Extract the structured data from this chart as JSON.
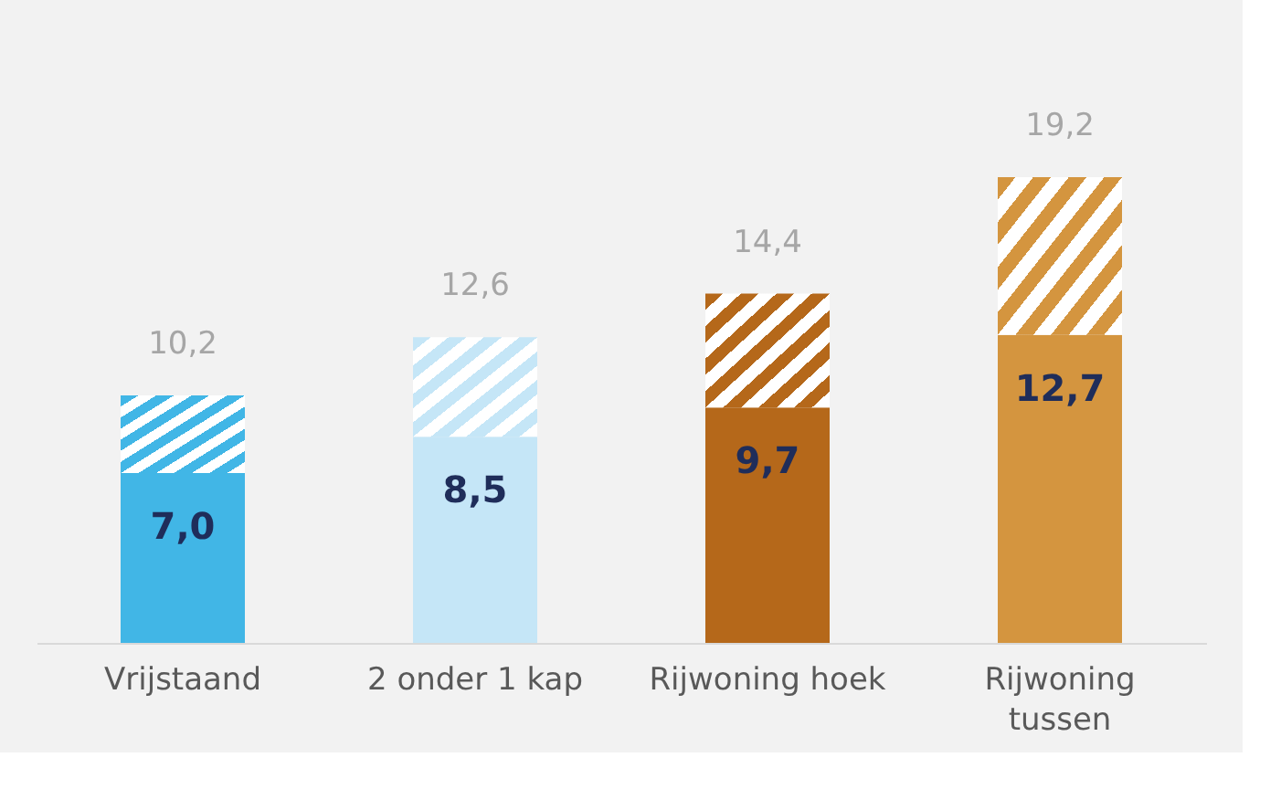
{
  "chart_data": {
    "type": "bar",
    "stacked": true,
    "categories": [
      "Vrijstaand",
      "2 onder 1 kap",
      "Rijwoning hoek",
      "Rijwoning tussen"
    ],
    "series": [
      {
        "colors": [
          "#41b6e6",
          "#c5e6f7",
          "#b5681a",
          "#d4953f"
        ],
        "values": [
          7.0,
          8.5,
          9.7,
          12.7
        ],
        "value_labels": [
          "7,0",
          "8,5",
          "9,7",
          "12,7"
        ]
      },
      {
        "colors": [
          "#41b6e6",
          "#c5e6f7",
          "#b5681a",
          "#d4953f"
        ],
        "values": [
          3.2,
          4.1,
          4.7,
          6.5
        ]
      }
    ],
    "totals": [
      "10,2",
      "12,6",
      "14,4",
      "19,2"
    ]
  }
}
